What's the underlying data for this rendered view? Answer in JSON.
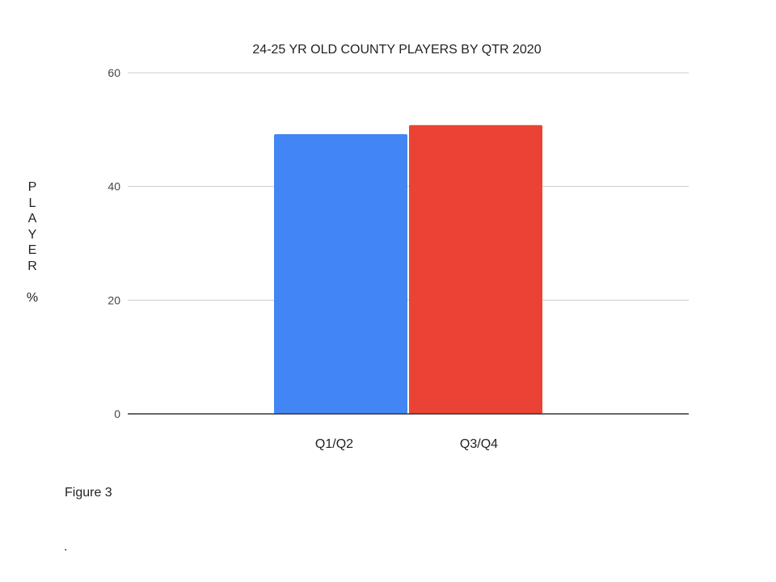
{
  "chart_data": {
    "type": "bar",
    "title": "24-25 YR OLD COUNTY PLAYERS BY QTR 2020",
    "categories": [
      "Q1/Q2",
      "Q3/Q4"
    ],
    "values": [
      49.2,
      50.8
    ],
    "ylabel_letters": [
      "P",
      "L",
      "A",
      "Y",
      "E",
      "R",
      "",
      "%"
    ],
    "xlabel": "",
    "ylim": [
      0,
      60
    ],
    "yticks": [
      0,
      20,
      40,
      60
    ],
    "grid": true,
    "legend": "none",
    "colors": [
      "#4285f4",
      "#ea4335"
    ],
    "gridline_color": "#cccccc",
    "baseline_color": "#333333"
  },
  "caption": "Figure 3",
  "note": "."
}
